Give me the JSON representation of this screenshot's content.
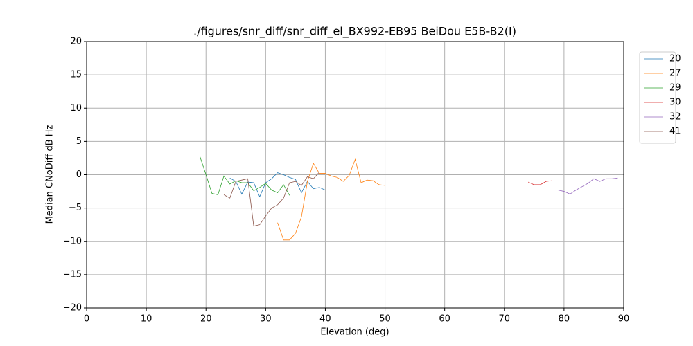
{
  "chart_data": {
    "type": "line",
    "title": "./figures/snr_diff/snr_diff_el_BX992-EB95 BeiDou  E5B-B2(I)",
    "xlabel": "Elevation (deg)",
    "ylabel": "Median CNoDiff dB Hz",
    "xlim": [
      0,
      90
    ],
    "ylim": [
      -20,
      20
    ],
    "xticks": [
      0,
      10,
      20,
      30,
      40,
      50,
      60,
      70,
      80,
      90
    ],
    "yticks": [
      {
        "value": -20,
        "label": "−20"
      },
      {
        "value": -15,
        "label": "−15"
      },
      {
        "value": -10,
        "label": "−10"
      },
      {
        "value": -5,
        "label": "−5"
      },
      0,
      5,
      10,
      15,
      20
    ],
    "grid": true,
    "legend": "outside upper right",
    "series": [
      {
        "name": "20",
        "color": "#1f77b4",
        "x": [
          24,
          25,
          26,
          27,
          28,
          29,
          30,
          31,
          32,
          33,
          34,
          35,
          36,
          37,
          38,
          39,
          40
        ],
        "values": [
          -0.5,
          -1.0,
          -2.9,
          -1.1,
          -1.2,
          -3.3,
          -1.2,
          -0.6,
          0.3,
          0.0,
          -0.4,
          -0.7,
          -2.7,
          -1.0,
          -2.1,
          -1.9,
          -2.3
        ]
      },
      {
        "name": "27",
        "color": "#ff7f0e",
        "x": [
          32,
          33,
          34,
          35,
          36,
          37,
          38,
          39,
          40,
          41,
          42,
          43,
          44,
          45,
          46,
          47,
          48,
          49,
          50
        ],
        "values": [
          -7.2,
          -9.8,
          -9.8,
          -8.8,
          -6.3,
          -1.0,
          1.7,
          0.2,
          0.2,
          -0.2,
          -0.4,
          -1.0,
          -0.1,
          2.3,
          -1.2,
          -0.8,
          -0.9,
          -1.5,
          -1.6
        ]
      },
      {
        "name": "29",
        "color": "#2ca02c",
        "x": [
          19,
          20,
          21,
          22,
          23,
          24,
          25,
          26,
          27,
          28,
          29,
          30,
          31,
          32,
          33,
          34
        ],
        "values": [
          2.7,
          0.0,
          -2.8,
          -3.0,
          -0.2,
          -1.4,
          -0.9,
          -1.2,
          -1.2,
          -2.4,
          -1.9,
          -1.3,
          -2.3,
          -2.7,
          -1.5,
          -3.1
        ]
      },
      {
        "name": "30",
        "color": "#d62728",
        "x": [
          74,
          75,
          76,
          77,
          78
        ],
        "values": [
          -1.1,
          -1.5,
          -1.5,
          -1.0,
          -0.9
        ]
      },
      {
        "name": "32",
        "color": "#9467bd",
        "x": [
          79,
          80,
          81,
          82,
          83,
          84,
          85,
          86,
          87,
          88,
          89
        ],
        "values": [
          -2.3,
          -2.5,
          -2.9,
          -2.3,
          -1.8,
          -1.3,
          -0.6,
          -1.0,
          -0.6,
          -0.6,
          -0.5
        ]
      },
      {
        "name": "41",
        "color": "#8c564b",
        "x": [
          23,
          24,
          25,
          26,
          27,
          28,
          29,
          30,
          31,
          32,
          33,
          34,
          35,
          36,
          37,
          38,
          39
        ],
        "values": [
          -3.0,
          -3.5,
          -1.0,
          -0.8,
          -0.6,
          -7.7,
          -7.5,
          -6.2,
          -5.0,
          -4.5,
          -3.5,
          -1.2,
          -1.0,
          -1.6,
          -0.3,
          -0.6,
          0.4
        ]
      }
    ]
  }
}
